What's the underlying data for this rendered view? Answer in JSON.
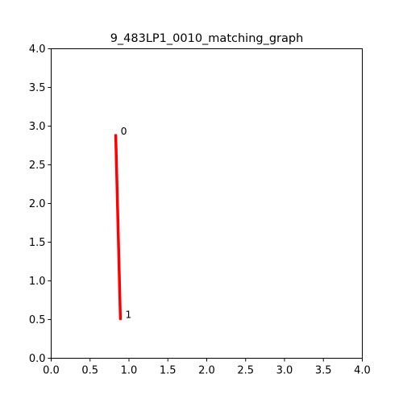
{
  "chart_data": {
    "type": "line",
    "title": "9_483LP1_0010_matching_graph",
    "xlabel": "",
    "ylabel": "",
    "xlim": [
      0,
      4
    ],
    "ylim": [
      0,
      4
    ],
    "xticks": [
      "0.0",
      "0.5",
      "1.0",
      "1.5",
      "2.0",
      "2.5",
      "3.0",
      "3.5",
      "4.0"
    ],
    "yticks": [
      "0.0",
      "0.5",
      "1.0",
      "1.5",
      "2.0",
      "2.5",
      "3.0",
      "3.5",
      "4.0"
    ],
    "grid": false,
    "nodes": [
      {
        "label": "0",
        "x": 0.83,
        "y": 2.88
      },
      {
        "label": "1",
        "x": 0.89,
        "y": 0.51
      }
    ],
    "edges": [
      {
        "from": 0,
        "to": 1,
        "color": "#ff0000"
      }
    ]
  }
}
